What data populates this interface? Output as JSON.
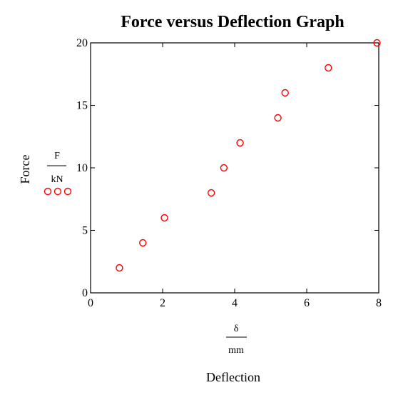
{
  "chart_data": {
    "type": "scatter",
    "title": "Force versus Deflection Graph",
    "xlabel": "Deflection",
    "ylabel": "Force",
    "x_unit": {
      "numerator": "δ",
      "denominator": "mm"
    },
    "y_unit": {
      "numerator": "F",
      "denominator": "kN"
    },
    "xlim": [
      0,
      8
    ],
    "ylim": [
      0,
      20
    ],
    "x_ticks": [
      0,
      2,
      4,
      6,
      8
    ],
    "y_ticks": [
      0,
      5,
      10,
      15,
      20
    ],
    "grid": false,
    "marker": "open-circle",
    "marker_color": "#ff0000",
    "legend_marker_count": 3,
    "series": [
      {
        "points": [
          {
            "x": 0.8,
            "y": 2
          },
          {
            "x": 1.45,
            "y": 4
          },
          {
            "x": 2.05,
            "y": 6
          },
          {
            "x": 3.35,
            "y": 8
          },
          {
            "x": 3.7,
            "y": 10
          },
          {
            "x": 4.15,
            "y": 12
          },
          {
            "x": 5.2,
            "y": 14
          },
          {
            "x": 5.4,
            "y": 16
          },
          {
            "x": 6.6,
            "y": 18
          },
          {
            "x": 7.95,
            "y": 20
          }
        ]
      }
    ]
  }
}
